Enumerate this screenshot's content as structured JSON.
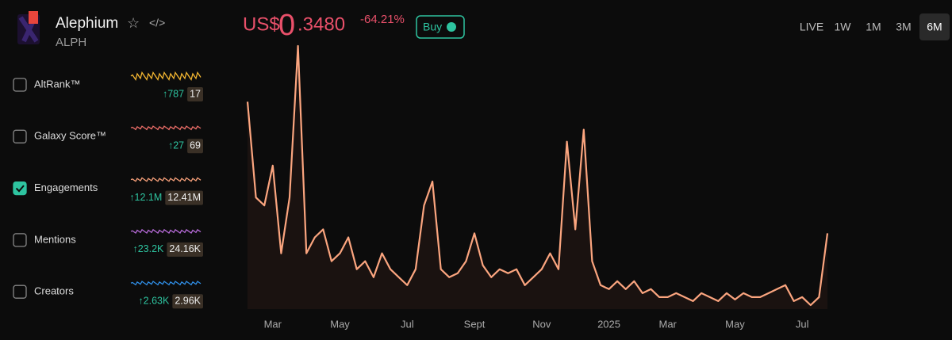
{
  "header": {
    "name": "Alephium",
    "ticker": "ALPH",
    "currency": "US$",
    "price_int": "0",
    "price_dec": ".3480",
    "change": "-64.21%",
    "buy": "Buy"
  },
  "timeframes": {
    "items": [
      "LIVE",
      "1W",
      "1M",
      "3M",
      "6M"
    ],
    "active": 4
  },
  "metrics": [
    {
      "label": "AltRank™",
      "change": "↑787",
      "value": "17",
      "checked": false,
      "color": "#f5b731"
    },
    {
      "label": "Galaxy Score™",
      "change": "↑27",
      "value": "69",
      "checked": false,
      "color": "#f0706a"
    },
    {
      "label": "Engagements",
      "change": "↑12.1M",
      "value": "12.41M",
      "checked": true,
      "color": "#f7a07a"
    },
    {
      "label": "Mentions",
      "change": "↑23.2K",
      "value": "24.16K",
      "checked": false,
      "color": "#b56ad6"
    },
    {
      "label": "Creators",
      "change": "↑2.63K",
      "value": "2.96K",
      "checked": false,
      "color": "#2f8fe8"
    }
  ],
  "chart_data": {
    "type": "line",
    "color": "#fba57f",
    "categories": [
      null,
      null,
      null,
      "Mar",
      null,
      null,
      null,
      null,
      null,
      null,
      null,
      "May",
      null,
      null,
      null,
      null,
      null,
      null,
      null,
      "Jul",
      null,
      null,
      null,
      null,
      null,
      null,
      null,
      "Sept",
      null,
      null,
      null,
      null,
      null,
      null,
      null,
      "Nov",
      null,
      null,
      null,
      null,
      null,
      null,
      null,
      "2025",
      null,
      null,
      null,
      null,
      null,
      null,
      "Mar",
      null,
      null,
      null,
      null,
      null,
      null,
      null,
      "May",
      null,
      null,
      null,
      null,
      null,
      null,
      null,
      "Jul",
      null,
      null,
      null
    ],
    "values": [
      260,
      140,
      130,
      180,
      70,
      140,
      330,
      70,
      90,
      100,
      60,
      70,
      90,
      50,
      60,
      40,
      70,
      50,
      40,
      30,
      50,
      130,
      160,
      50,
      40,
      45,
      60,
      95,
      55,
      40,
      50,
      45,
      50,
      30,
      40,
      50,
      70,
      50,
      210,
      100,
      225,
      60,
      30,
      25,
      35,
      25,
      35,
      20,
      25,
      15,
      15,
      20,
      15,
      10,
      20,
      15,
      10,
      20,
      12,
      20,
      15,
      15,
      20,
      25,
      30,
      10,
      15,
      5,
      15,
      95
    ]
  }
}
